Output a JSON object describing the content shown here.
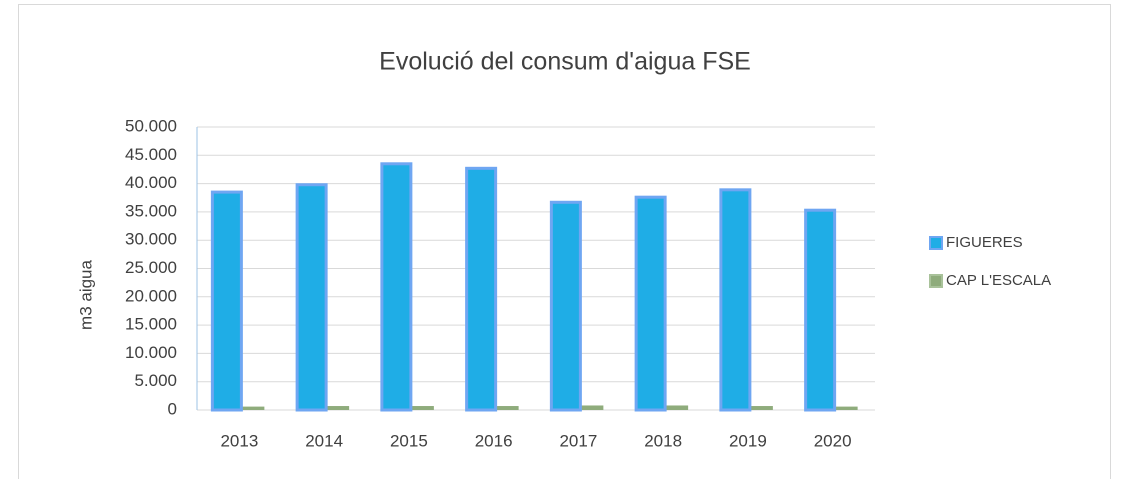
{
  "chart_data": {
    "type": "bar",
    "title": "Evolució del consum d'aigua FSE",
    "y_label": "m3 aigua",
    "categories": [
      "2013",
      "2014",
      "2015",
      "2016",
      "2017",
      "2018",
      "2019",
      "2020"
    ],
    "series": [
      {
        "name": "FIGUERES",
        "color": "#1fade6",
        "values": [
          38500,
          39800,
          43500,
          42700,
          36700,
          37600,
          38900,
          35300
        ]
      },
      {
        "name": "CAP L'ESCALA",
        "color": "#8fac7c",
        "values": [
          600,
          700,
          700,
          700,
          800,
          800,
          700,
          600
        ]
      }
    ],
    "ylim": [
      0,
      50000
    ],
    "yticks": [
      0,
      {
        "value": 5000,
        "label": "5.000"
      },
      {
        "value": 10000,
        "label": "10.000"
      },
      {
        "value": 15000,
        "label": "15.000"
      },
      {
        "value": 20000,
        "label": "20.000"
      },
      {
        "value": 25000,
        "label": "25.000"
      },
      {
        "value": 30000,
        "label": "30.000"
      },
      {
        "value": 35000,
        "label": "35.000"
      },
      {
        "value": 40000,
        "label": "40.000"
      },
      {
        "value": 45000,
        "label": "45.000"
      },
      {
        "value": 50000,
        "label": "50.000"
      }
    ],
    "grid": true,
    "legend": "right"
  }
}
